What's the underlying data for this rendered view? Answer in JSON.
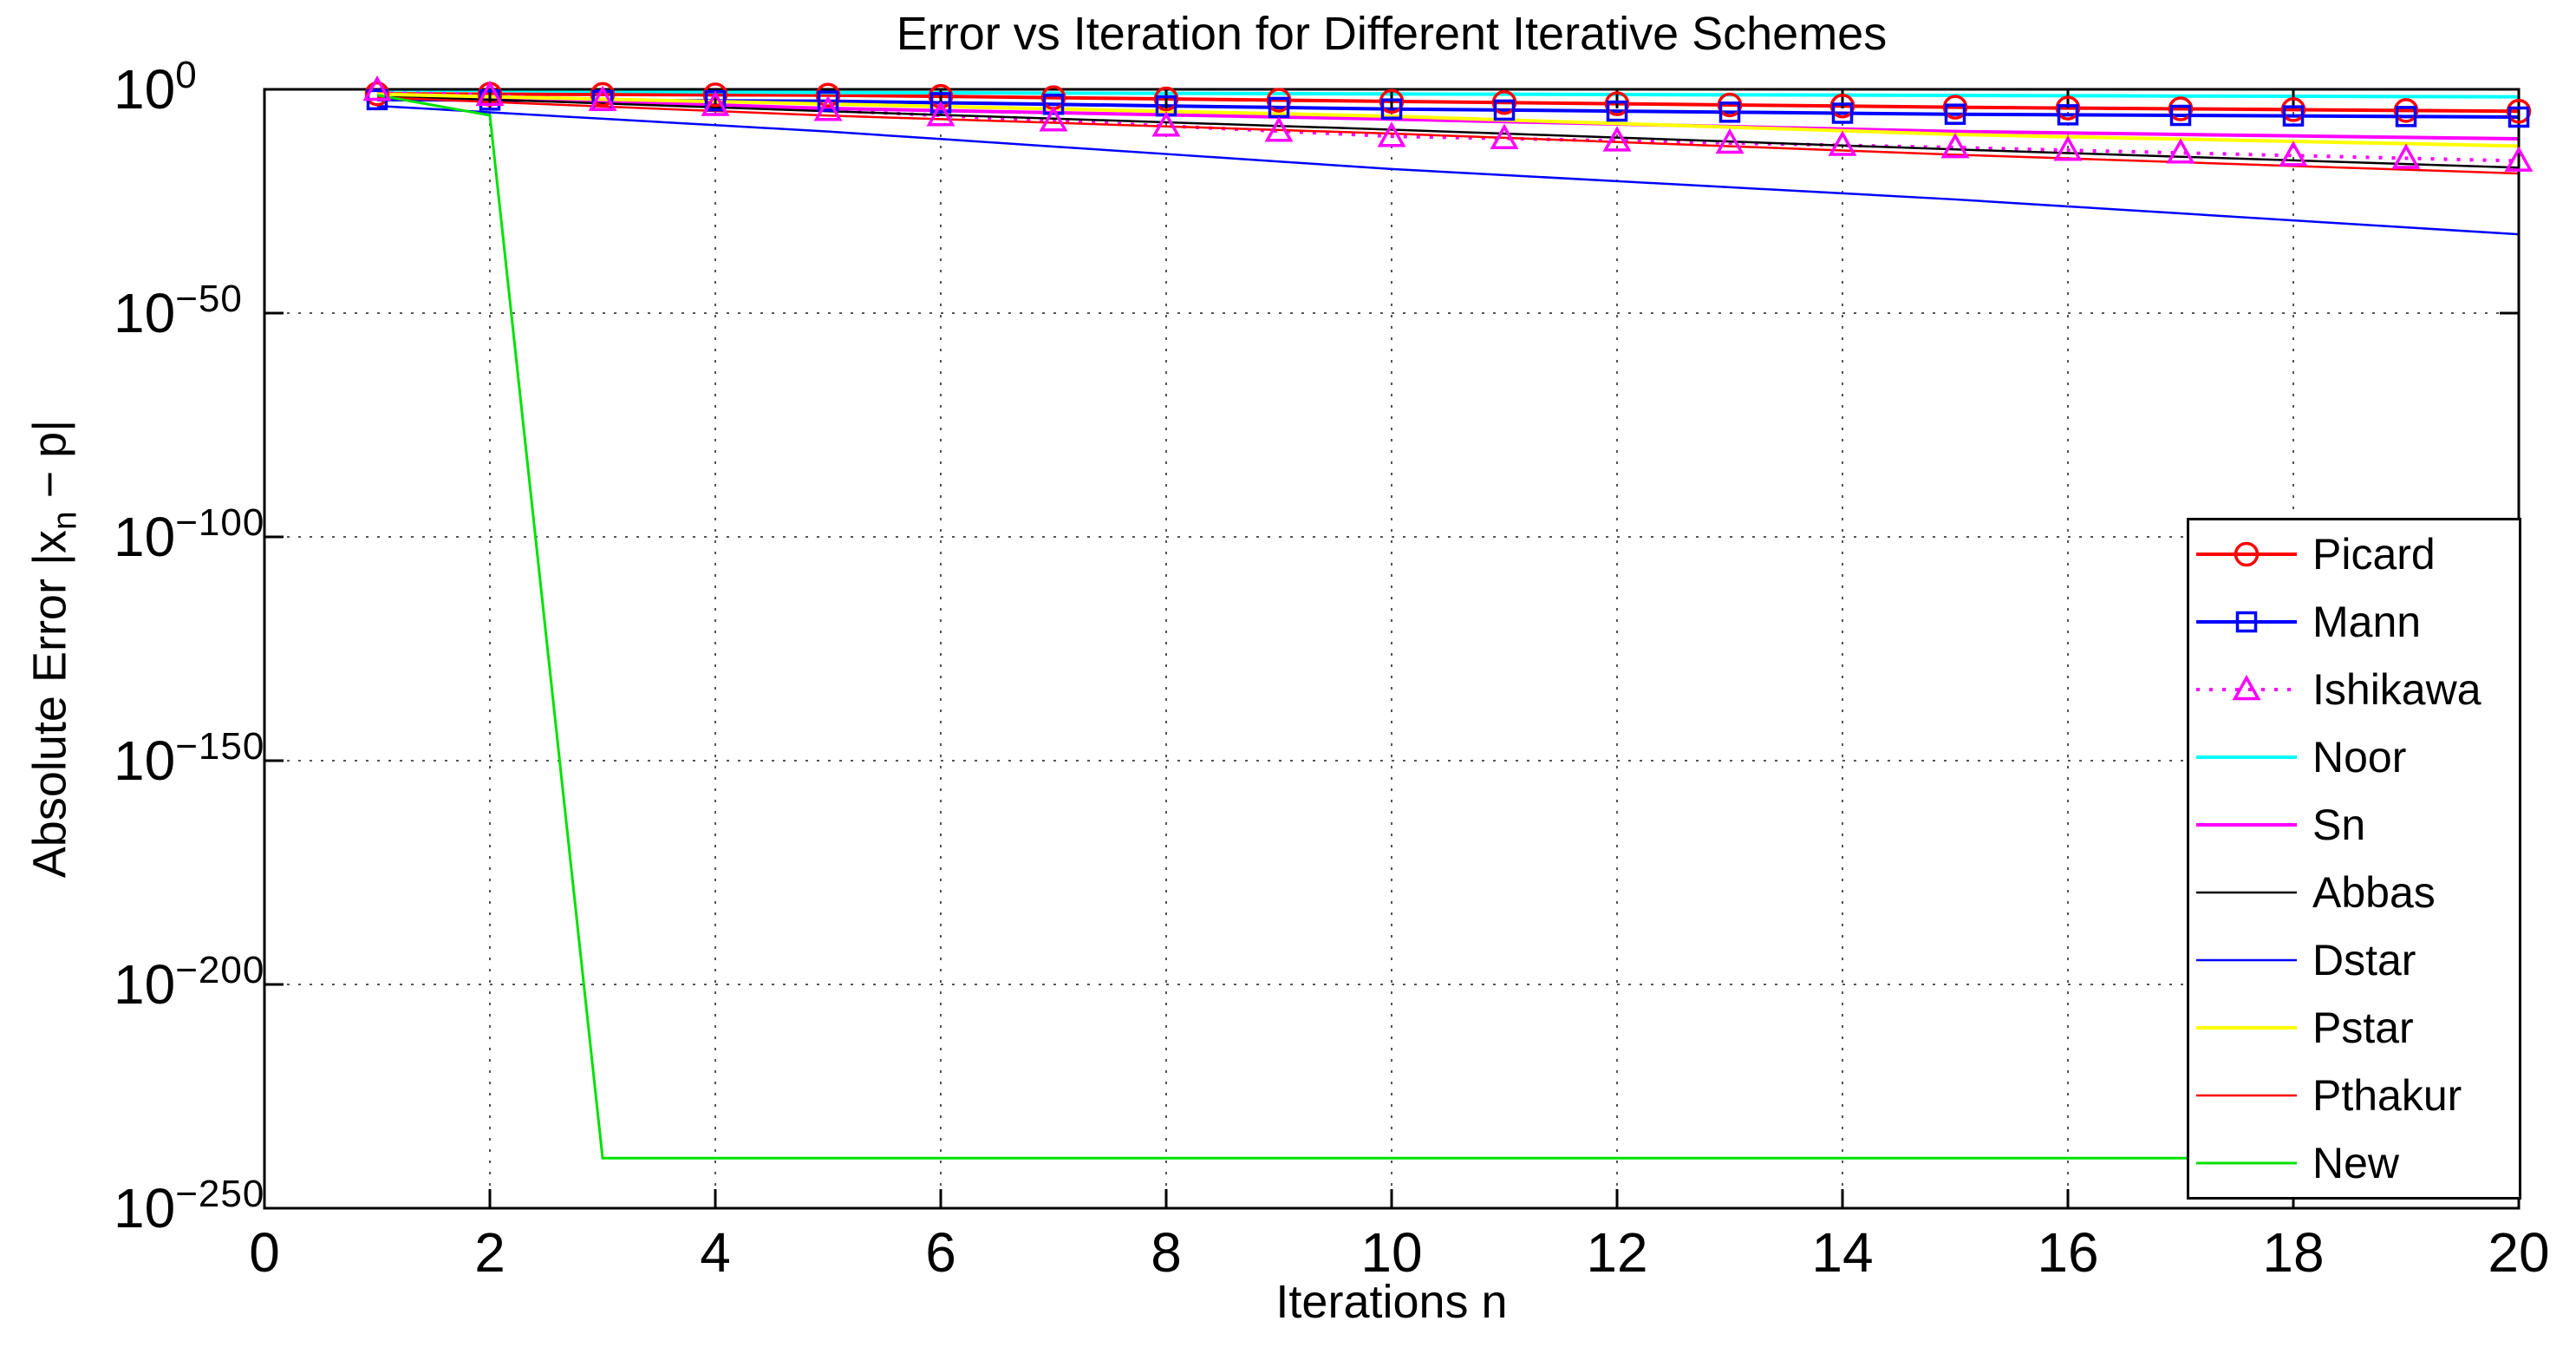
{
  "chart_data": {
    "type": "line",
    "title": "Error vs Iteration for Different Iterative Schemes",
    "xlabel": "Iterations n",
    "ylabel": "Absolute Error |x_n − p|",
    "ylabel_parts": {
      "prefix": "Absolute Error |x",
      "sub": "n",
      "suffix": " − p|"
    },
    "x_axis": {
      "lim": [
        0,
        20
      ],
      "ticks": [
        0,
        2,
        4,
        6,
        8,
        10,
        12,
        14,
        16,
        18,
        20
      ]
    },
    "y_axis": {
      "scale": "log10",
      "lim_log10": [
        -250,
        0
      ],
      "tick_log10": [
        0,
        -50,
        -100,
        -150,
        -200,
        -250
      ],
      "tick_labels": [
        {
          "base": "10",
          "exp": "0"
        },
        {
          "base": "10",
          "exp": "−50"
        },
        {
          "base": "10",
          "exp": "−100"
        },
        {
          "base": "10",
          "exp": "−150"
        },
        {
          "base": "10",
          "exp": "−200"
        },
        {
          "base": "10",
          "exp": "−250"
        }
      ]
    },
    "grid": true,
    "grid_style": "dotted",
    "legend": {
      "position": "lower-right-inside",
      "border_color": "#000000",
      "background": "#ffffff"
    },
    "x": [
      1,
      2,
      3,
      4,
      5,
      6,
      7,
      8,
      9,
      10,
      11,
      12,
      13,
      14,
      15,
      16,
      17,
      18,
      19,
      20
    ],
    "series": [
      {
        "name": "Picard",
        "color": "#ff0000",
        "line_style": "solid",
        "line_width": 4,
        "marker": "circle",
        "marker_size": 25,
        "log10_error": [
          -1.0,
          -1.08,
          -1.15,
          -1.23,
          -1.3,
          -1.58,
          -1.86,
          -2.14,
          -2.42,
          -2.7,
          -2.96,
          -3.22,
          -3.48,
          -3.74,
          -4.0,
          -4.18,
          -4.36,
          -4.54,
          -4.72,
          -4.9
        ]
      },
      {
        "name": "Mann",
        "color": "#0000ff",
        "line_style": "solid",
        "line_width": 4,
        "marker": "square",
        "marker_size": 21,
        "log10_error": [
          -2.3,
          -2.39,
          -2.48,
          -2.56,
          -2.65,
          -3.0,
          -3.35,
          -3.7,
          -4.05,
          -4.4,
          -4.63,
          -4.86,
          -5.1,
          -5.33,
          -5.56,
          -5.69,
          -5.82,
          -5.94,
          -6.07,
          -6.2
        ]
      },
      {
        "name": "Ishikawa",
        "color": "#ff00ff",
        "line_style": "dotted",
        "line_width": 4,
        "marker": "triangle",
        "marker_size": 27,
        "log10_error": [
          -0.2,
          -1.33,
          -2.45,
          -3.58,
          -4.7,
          -5.86,
          -7.02,
          -8.18,
          -9.34,
          -10.5,
          -11.0,
          -11.5,
          -12.0,
          -12.5,
          -13.0,
          -13.6,
          -14.2,
          -14.8,
          -15.4,
          -16.0
        ]
      },
      {
        "name": "Noor",
        "color": "#00ffff",
        "line_style": "solid",
        "line_width": 4,
        "marker": "none",
        "marker_size": 0,
        "log10_error": [
          -0.1,
          -0.26,
          -0.41,
          -0.57,
          -0.72,
          -0.78,
          -0.84,
          -0.9,
          -0.97,
          -1.03,
          -1.1,
          -1.16,
          -1.23,
          -1.29,
          -1.36,
          -1.42,
          -1.49,
          -1.55,
          -1.62,
          -1.68
        ]
      },
      {
        "name": "Sn",
        "color": "#ff00ff",
        "line_style": "solid",
        "line_width": 4,
        "marker": "none",
        "marker_size": 0,
        "log10_error": [
          -1.2,
          -1.97,
          -2.73,
          -3.5,
          -4.26,
          -4.74,
          -5.22,
          -5.69,
          -6.17,
          -6.65,
          -7.21,
          -7.76,
          -8.32,
          -8.87,
          -9.43,
          -9.75,
          -10.08,
          -10.4,
          -10.73,
          -11.05
        ]
      },
      {
        "name": "Abbas",
        "color": "#000000",
        "line_style": "solid",
        "line_width": 2.5,
        "marker": "none",
        "marker_size": 0,
        "log10_error": [
          -1.4,
          -2.28,
          -3.15,
          -4.03,
          -4.9,
          -5.72,
          -6.54,
          -7.36,
          -8.18,
          -9.0,
          -9.89,
          -10.77,
          -11.66,
          -12.54,
          -13.43,
          -14.24,
          -15.06,
          -15.87,
          -16.69,
          -17.5
        ]
      },
      {
        "name": "Dstar",
        "color": "#0000ff",
        "line_style": "solid",
        "line_width": 2.5,
        "marker": "none",
        "marker_size": 0,
        "log10_error": [
          -3.7,
          -5.13,
          -6.57,
          -8.0,
          -9.43,
          -11.1,
          -12.78,
          -14.45,
          -16.13,
          -17.8,
          -19.16,
          -20.52,
          -21.88,
          -23.24,
          -24.6,
          -26.16,
          -27.72,
          -29.28,
          -30.84,
          -32.4
        ]
      },
      {
        "name": "Pstar",
        "color": "#ffff00",
        "line_style": "solid",
        "line_width": 4,
        "marker": "none",
        "marker_size": 0,
        "log10_error": [
          -1.1,
          -1.65,
          -2.2,
          -2.74,
          -3.29,
          -3.83,
          -4.37,
          -4.92,
          -5.46,
          -6.0,
          -6.82,
          -7.63,
          -8.45,
          -9.26,
          -10.08,
          -10.6,
          -11.11,
          -11.63,
          -12.14,
          -12.66
        ]
      },
      {
        "name": "Pthakur",
        "color": "#ff0000",
        "line_style": "solid",
        "line_width": 2.5,
        "marker": "none",
        "marker_size": 0,
        "log10_error": [
          -1.8,
          -2.82,
          -3.83,
          -4.85,
          -5.87,
          -6.67,
          -7.47,
          -8.28,
          -9.08,
          -9.88,
          -10.82,
          -11.77,
          -12.71,
          -13.66,
          -14.6,
          -15.44,
          -16.28,
          -17.12,
          -17.96,
          -18.8
        ]
      },
      {
        "name": "New",
        "color": "#00e100",
        "line_style": "solid",
        "line_width": 3,
        "marker": "none",
        "marker_size": 0,
        "log10_error": [
          -1.3,
          -5.8,
          -238.8,
          -238.8,
          -238.8,
          -238.8,
          -238.8,
          -238.8,
          -238.8,
          -238.8,
          -238.8,
          -238.8,
          -238.8,
          -238.8,
          -238.8,
          -238.8,
          -238.8,
          -238.8,
          -238.8,
          -238.8
        ]
      }
    ]
  }
}
